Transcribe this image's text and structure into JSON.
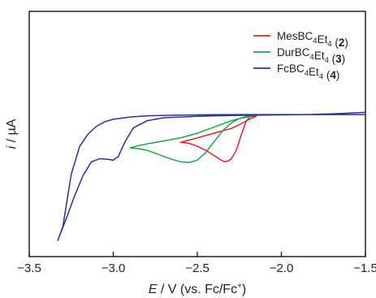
{
  "chart_data": {
    "type": "line",
    "xlabel": {
      "italic": "E",
      "text": " / V (vs. Fc/Fc",
      "sup": "+",
      "end": ")"
    },
    "ylabel": {
      "italic": "i",
      "text": " / µA"
    },
    "xlim": [
      -3.5,
      -1.5
    ],
    "xticks": [
      -3.5,
      -3.0,
      -2.5,
      -2.0,
      -1.5
    ],
    "xtick_labels": [
      "−3.5",
      "−3.0",
      "−2.5",
      "−2.0",
      "−1.5"
    ],
    "ylim": [
      0,
      1
    ],
    "grid": false,
    "legend_position": "top-right",
    "series": [
      {
        "name": "Mes",
        "name_parts": [
          {
            "t": "MesBC"
          },
          {
            "t": "4",
            "sub": true
          },
          {
            "t": "Et"
          },
          {
            "t": "4",
            "sub": true
          },
          {
            "t": " ("
          },
          {
            "t": "2",
            "bold": true
          },
          {
            "t": ")"
          }
        ],
        "color": "#e0202c",
        "x": [
          -2.6,
          -2.55,
          -2.5,
          -2.45,
          -2.4,
          -2.35,
          -2.33,
          -2.3,
          -2.27,
          -2.24,
          -2.21,
          -2.19,
          -2.17,
          -2.15,
          -2.17,
          -2.2,
          -2.25,
          -2.3,
          -2.35,
          -2.4,
          -2.45,
          -2.5,
          -2.55,
          -2.6
        ],
        "y": [
          0.645,
          0.64,
          0.62,
          0.595,
          0.56,
          0.525,
          0.52,
          0.535,
          0.59,
          0.69,
          0.78,
          0.81,
          0.815,
          0.815,
          0.805,
          0.79,
          0.76,
          0.735,
          0.72,
          0.705,
          0.69,
          0.675,
          0.66,
          0.645
        ]
      },
      {
        "name": "Dur",
        "name_parts": [
          {
            "t": "DurBC"
          },
          {
            "t": "4",
            "sub": true
          },
          {
            "t": "Et"
          },
          {
            "t": "4",
            "sub": true
          },
          {
            "t": " ("
          },
          {
            "t": "3",
            "bold": true
          },
          {
            "t": ")"
          }
        ],
        "color": "#1ea24a",
        "x": [
          -2.9,
          -2.85,
          -2.8,
          -2.75,
          -2.7,
          -2.65,
          -2.6,
          -2.55,
          -2.5,
          -2.45,
          -2.4,
          -2.35,
          -2.3,
          -2.25,
          -2.22,
          -2.2,
          -2.17,
          -2.2,
          -2.25,
          -2.3,
          -2.35,
          -2.4,
          -2.45,
          -2.5,
          -2.55,
          -2.6,
          -2.65,
          -2.7,
          -2.75,
          -2.8,
          -2.85,
          -2.9
        ],
        "y": [
          0.61,
          0.605,
          0.595,
          0.575,
          0.555,
          0.535,
          0.52,
          0.515,
          0.53,
          0.58,
          0.65,
          0.72,
          0.77,
          0.8,
          0.81,
          0.815,
          0.815,
          0.81,
          0.8,
          0.785,
          0.765,
          0.745,
          0.725,
          0.705,
          0.69,
          0.675,
          0.665,
          0.655,
          0.645,
          0.635,
          0.625,
          0.61
        ]
      },
      {
        "name": "Fc",
        "name_parts": [
          {
            "t": "FcBC"
          },
          {
            "t": "4",
            "sub": true
          },
          {
            "t": "Et"
          },
          {
            "t": "4",
            "sub": true
          },
          {
            "t": " ("
          },
          {
            "t": "4",
            "bold": true
          },
          {
            "t": ")"
          }
        ],
        "color": "#2b3290",
        "x": [
          -1.5,
          -1.7,
          -1.9,
          -2.1,
          -2.3,
          -2.5,
          -2.7,
          -2.8,
          -2.88,
          -2.93,
          -2.97,
          -3.0,
          -3.03,
          -3.08,
          -3.13,
          -3.18,
          -3.23,
          -3.28,
          -3.33,
          -3.3,
          -3.25,
          -3.2,
          -3.15,
          -3.1,
          -3.05,
          -3.0,
          -2.9,
          -2.8,
          -2.6,
          -2.4,
          -2.2,
          -2.0,
          -1.8,
          -1.6,
          -1.5
        ],
        "y": [
          0.84,
          0.83,
          0.825,
          0.822,
          0.82,
          0.815,
          0.805,
          0.785,
          0.74,
          0.65,
          0.555,
          0.53,
          0.535,
          0.54,
          0.52,
          0.43,
          0.3,
          0.15,
          0.01,
          0.1,
          0.44,
          0.62,
          0.7,
          0.75,
          0.78,
          0.795,
          0.81,
          0.818,
          0.822,
          0.825,
          0.826,
          0.826,
          0.826,
          0.826,
          0.826
        ]
      }
    ]
  }
}
